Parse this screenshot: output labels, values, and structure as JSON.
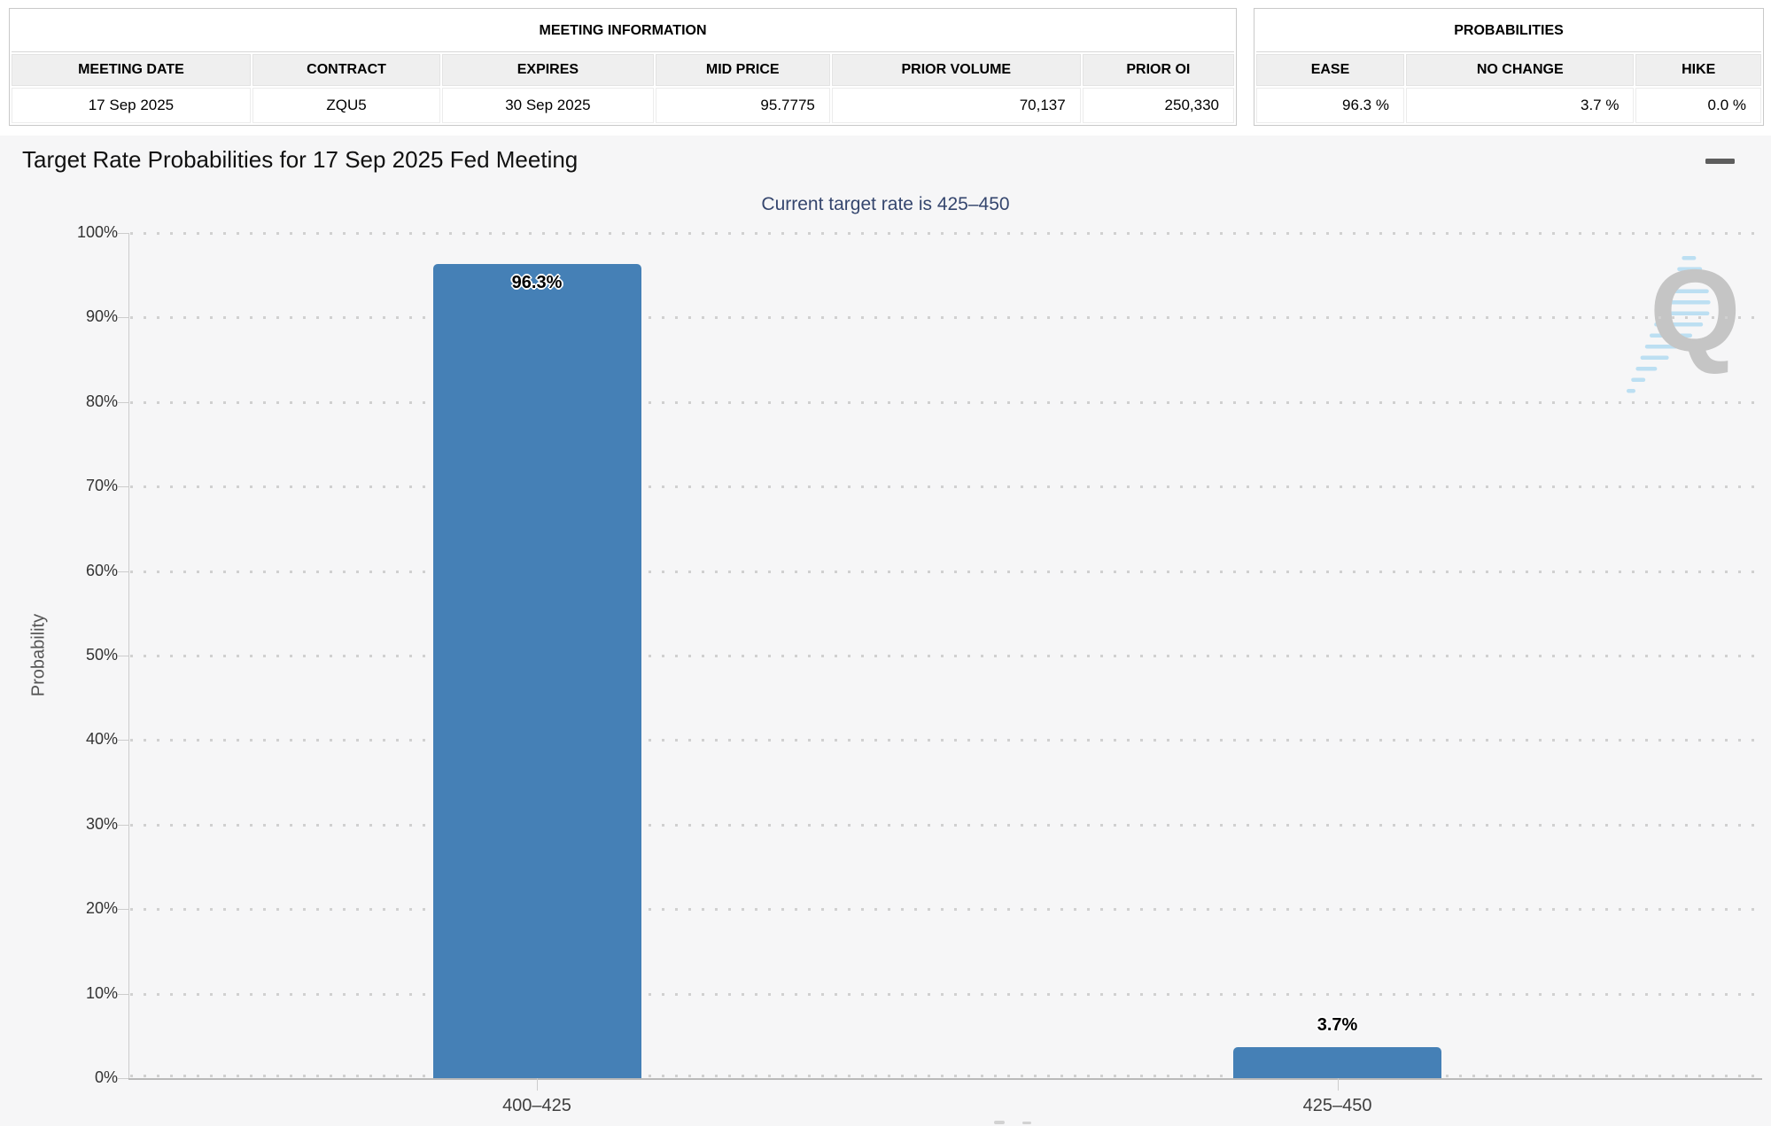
{
  "meeting_info": {
    "title": "MEETING INFORMATION",
    "headers": [
      "MEETING DATE",
      "CONTRACT",
      "EXPIRES",
      "MID PRICE",
      "PRIOR VOLUME",
      "PRIOR OI"
    ],
    "row": [
      "17 Sep 2025",
      "ZQU5",
      "30 Sep 2025",
      "95.7775",
      "70,137",
      "250,330"
    ]
  },
  "probabilities": {
    "title": "PROBABILITIES",
    "headers": [
      "EASE",
      "NO CHANGE",
      "HIKE"
    ],
    "row": [
      "96.3 %",
      "3.7 %",
      "0.0 %"
    ]
  },
  "chart": {
    "title": "Target Rate Probabilities for 17 Sep 2025 Fed Meeting",
    "subtitle": "Current target rate is 425–450",
    "menu_icon": "hamburger-icon",
    "watermark_letter": "Q"
  },
  "chart_data": {
    "type": "bar",
    "categories": [
      "400–425",
      "425–450"
    ],
    "values": [
      96.3,
      3.7
    ],
    "value_labels": [
      "96.3%",
      "3.7%"
    ],
    "title": "Target Rate Probabilities for 17 Sep 2025 Fed Meeting",
    "subtitle": "Current target rate is 425–450",
    "xlabel": "",
    "ylabel": "Probability",
    "ylim": [
      0,
      100
    ],
    "ytick_step": 10,
    "ytick_suffix": "%",
    "grid": "dotted horizontal",
    "legend": "none",
    "bar_color": "#4580B6",
    "subtitle_color": "#35466E",
    "label_style": "black with white outline"
  }
}
